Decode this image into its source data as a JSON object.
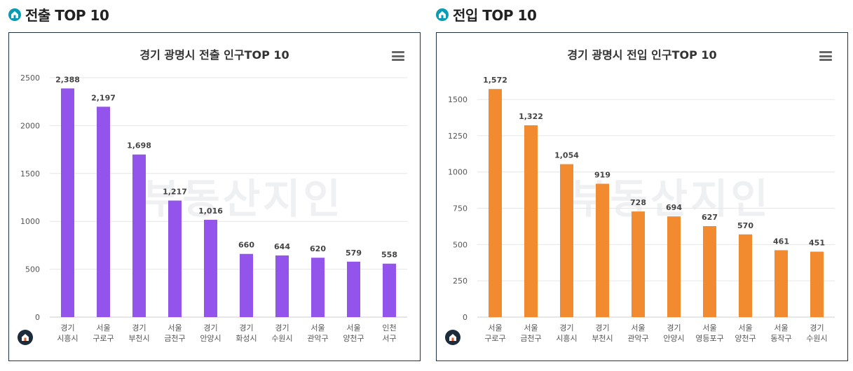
{
  "sections": {
    "out": {
      "title": "전출 TOP 10"
    },
    "in": {
      "title": "전입 TOP 10"
    }
  },
  "watermark": "부동산지인",
  "chart_data": [
    {
      "type": "bar",
      "title": "경기 광명시 전출 인구TOP 10",
      "color": "#9254ea",
      "categories": [
        [
          "경기",
          "시흥시"
        ],
        [
          "서울",
          "구로구"
        ],
        [
          "경기",
          "부천시"
        ],
        [
          "서울",
          "금천구"
        ],
        [
          "경기",
          "안양시"
        ],
        [
          "경기",
          "화성시"
        ],
        [
          "경기",
          "수원시"
        ],
        [
          "서울",
          "관악구"
        ],
        [
          "서울",
          "양천구"
        ],
        [
          "인천",
          "서구"
        ]
      ],
      "values": [
        2388,
        2197,
        1698,
        1217,
        1016,
        660,
        644,
        620,
        579,
        558
      ],
      "labels": [
        "2,388",
        "2,197",
        "1,698",
        "1,217",
        "1,016",
        "660",
        "644",
        "620",
        "579",
        "558"
      ],
      "ylim": [
        0,
        2500
      ],
      "yticks": [
        0,
        500,
        1000,
        1500,
        2000,
        2500
      ],
      "xlabel": "",
      "ylabel": ""
    },
    {
      "type": "bar",
      "title": "경기 광명시 전입 인구TOP 10",
      "color": "#f28a30",
      "categories": [
        [
          "서울",
          "구로구"
        ],
        [
          "서울",
          "금천구"
        ],
        [
          "경기",
          "시흥시"
        ],
        [
          "경기",
          "부천시"
        ],
        [
          "서울",
          "관악구"
        ],
        [
          "경기",
          "안양시"
        ],
        [
          "서울",
          "영등포구"
        ],
        [
          "서울",
          "양천구"
        ],
        [
          "서울",
          "동작구"
        ],
        [
          "경기",
          "수원시"
        ]
      ],
      "values": [
        1572,
        1322,
        1054,
        919,
        728,
        694,
        627,
        570,
        461,
        451
      ],
      "labels": [
        "1,572",
        "1,322",
        "1,054",
        "919",
        "728",
        "694",
        "627",
        "570",
        "461",
        "451"
      ],
      "ylim": [
        0,
        1650
      ],
      "yticks": [
        0,
        250,
        500,
        750,
        1000,
        1250,
        1500
      ],
      "xlabel": "",
      "ylabel": ""
    }
  ]
}
